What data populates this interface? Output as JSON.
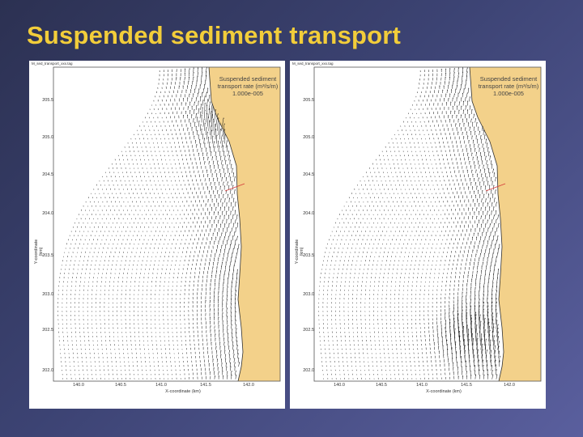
{
  "slide": {
    "title": "Suspended sediment transport"
  },
  "colors": {
    "land": "#f3d18a",
    "title": "#f2cd3a",
    "vectors": "#111111",
    "transect": "#d43a3a"
  },
  "panels": [
    {
      "filename": "M_sed_transport_xxx.tag",
      "legend": [
        "Suspended sediment",
        "transport rate (m³/s/m)",
        "1.000e-005"
      ],
      "ylabel": "Y-coordinate (km)",
      "xlabel": "X-coordinate (km)",
      "yticks": [
        "205.5",
        "205.0",
        "204.5",
        "204.0",
        "203.5",
        "203.0",
        "202.5",
        "202.0"
      ],
      "xticks": [
        "140.0",
        "140.5",
        "141.0",
        "141.5",
        "142.0"
      ],
      "hotspots": [
        "north"
      ]
    },
    {
      "filename": "M_sed_transport_xxx.tag",
      "legend": [
        "Suspended sediment",
        "transport rate (m³/s/m)",
        "1.000e-005"
      ],
      "ylabel": "Y-coordinate (km)",
      "xlabel": "X-coordinate (km)",
      "yticks": [
        "205.5",
        "205.0",
        "204.5",
        "204.0",
        "203.5",
        "203.0",
        "202.5",
        "202.0"
      ],
      "xticks": [
        "140.0",
        "140.5",
        "141.0",
        "141.5",
        "142.0"
      ],
      "hotspots": [
        "south"
      ]
    }
  ]
}
